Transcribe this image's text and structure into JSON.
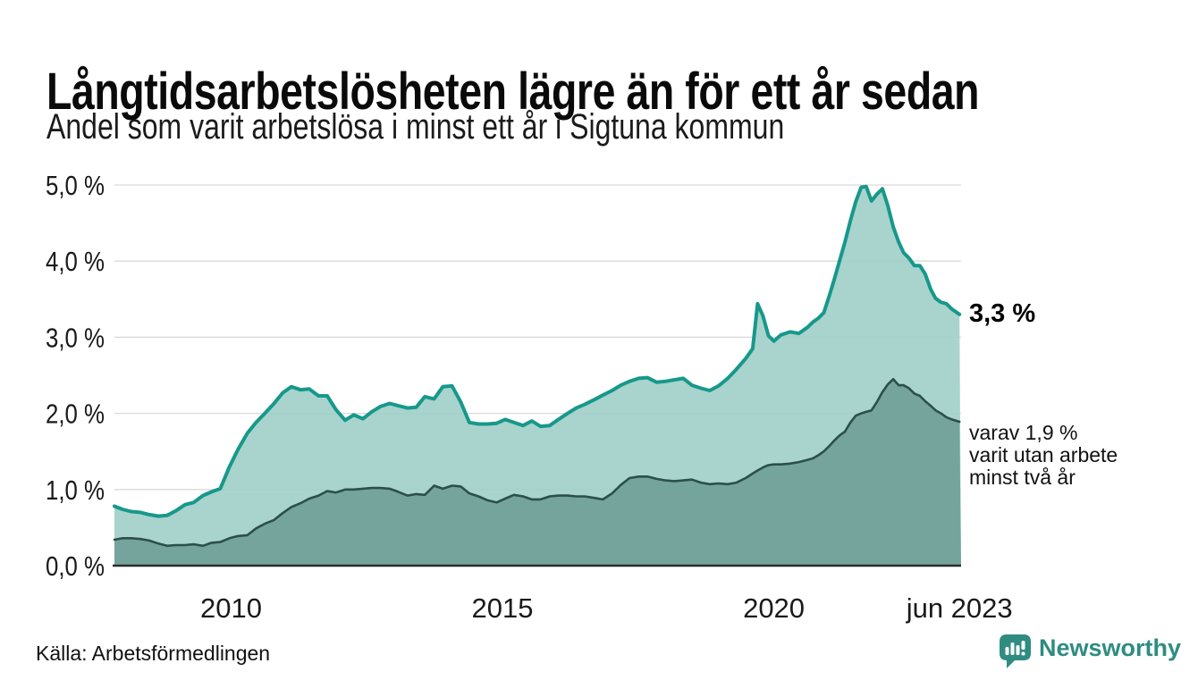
{
  "header": {
    "title": "Långtidsarbetslösheten lägre än för ett år sedan",
    "subtitle": "Andel som varit arbetslösa i minst ett år i Sigtuna kommun"
  },
  "chart_data": {
    "type": "area",
    "title": "Långtidsarbetslösheten lägre än för ett år sedan",
    "subtitle": "Andel som varit arbetslösa i minst ett år i Sigtuna kommun",
    "x_unit": "decimal_year",
    "xlim": [
      2007.85,
      2023.45
    ],
    "ylim": [
      0,
      5
    ],
    "grid": "horizontal",
    "legend_position": "none",
    "x": [
      2007.85,
      2008.0,
      2008.16,
      2008.33,
      2008.49,
      2008.66,
      2008.82,
      2008.98,
      2009.15,
      2009.31,
      2009.48,
      2009.64,
      2009.8,
      2009.97,
      2010.13,
      2010.3,
      2010.46,
      2010.62,
      2010.79,
      2010.95,
      2011.11,
      2011.28,
      2011.44,
      2011.61,
      2011.77,
      2011.93,
      2012.1,
      2012.26,
      2012.43,
      2012.59,
      2012.75,
      2012.92,
      2013.08,
      2013.25,
      2013.41,
      2013.57,
      2013.74,
      2013.9,
      2014.07,
      2014.23,
      2014.39,
      2014.56,
      2014.72,
      2014.89,
      2015.05,
      2015.21,
      2015.38,
      2015.54,
      2015.7,
      2015.87,
      2016.03,
      2016.2,
      2016.36,
      2016.52,
      2016.69,
      2016.85,
      2017.02,
      2017.18,
      2017.34,
      2017.51,
      2017.67,
      2017.84,
      2018.0,
      2018.16,
      2018.33,
      2018.49,
      2018.66,
      2018.82,
      2018.98,
      2019.15,
      2019.31,
      2019.48,
      2019.61,
      2019.7,
      2019.8,
      2019.9,
      2020.0,
      2020.13,
      2020.3,
      2020.46,
      2020.62,
      2020.72,
      2020.82,
      2020.92,
      2021.02,
      2021.11,
      2021.21,
      2021.31,
      2021.41,
      2021.51,
      2021.61,
      2021.7,
      2021.8,
      2021.9,
      2022.0,
      2022.1,
      2022.2,
      2022.3,
      2022.39,
      2022.49,
      2022.59,
      2022.69,
      2022.79,
      2022.89,
      2022.98,
      2023.08,
      2023.18,
      2023.28,
      2023.42
    ],
    "series": [
      {
        "name": "Arbetslösa minst ett år",
        "end_value": 3.3,
        "values": [
          0.78,
          0.74,
          0.71,
          0.7,
          0.67,
          0.65,
          0.66,
          0.72,
          0.8,
          0.83,
          0.92,
          0.97,
          1.01,
          1.3,
          1.53,
          1.74,
          1.88,
          2.0,
          2.13,
          2.27,
          2.35,
          2.31,
          2.32,
          2.23,
          2.23,
          2.05,
          1.91,
          1.98,
          1.93,
          2.02,
          2.09,
          2.13,
          2.1,
          2.07,
          2.08,
          2.22,
          2.19,
          2.35,
          2.36,
          2.15,
          1.88,
          1.86,
          1.86,
          1.87,
          1.92,
          1.88,
          1.84,
          1.9,
          1.83,
          1.84,
          1.92,
          2.0,
          2.07,
          2.12,
          2.18,
          2.24,
          2.3,
          2.37,
          2.42,
          2.46,
          2.47,
          2.41,
          2.42,
          2.44,
          2.46,
          2.37,
          2.33,
          2.3,
          2.36,
          2.46,
          2.58,
          2.72,
          2.85,
          3.44,
          3.28,
          3.02,
          2.95,
          3.03,
          3.07,
          3.05,
          3.13,
          3.2,
          3.25,
          3.32,
          3.54,
          3.75,
          4.0,
          4.25,
          4.53,
          4.78,
          4.97,
          4.98,
          4.79,
          4.88,
          4.95,
          4.73,
          4.45,
          4.25,
          4.11,
          4.04,
          3.94,
          3.94,
          3.83,
          3.63,
          3.51,
          3.46,
          3.44,
          3.37,
          3.3
        ]
      },
      {
        "name": "varav arbetslösa minst två år",
        "end_value": 1.9,
        "values": [
          0.34,
          0.36,
          0.36,
          0.35,
          0.33,
          0.29,
          0.26,
          0.27,
          0.27,
          0.28,
          0.26,
          0.3,
          0.31,
          0.36,
          0.39,
          0.4,
          0.49,
          0.55,
          0.6,
          0.69,
          0.77,
          0.82,
          0.88,
          0.92,
          0.98,
          0.96,
          1.0,
          1.0,
          1.01,
          1.02,
          1.02,
          1.01,
          0.97,
          0.92,
          0.94,
          0.93,
          1.05,
          1.01,
          1.05,
          1.04,
          0.95,
          0.91,
          0.86,
          0.83,
          0.88,
          0.93,
          0.91,
          0.87,
          0.87,
          0.91,
          0.92,
          0.92,
          0.91,
          0.91,
          0.89,
          0.87,
          0.95,
          1.06,
          1.15,
          1.17,
          1.17,
          1.14,
          1.12,
          1.11,
          1.12,
          1.13,
          1.09,
          1.07,
          1.08,
          1.07,
          1.09,
          1.15,
          1.21,
          1.25,
          1.29,
          1.32,
          1.33,
          1.33,
          1.34,
          1.36,
          1.39,
          1.41,
          1.45,
          1.5,
          1.57,
          1.64,
          1.71,
          1.76,
          1.88,
          1.97,
          2.0,
          2.02,
          2.04,
          2.15,
          2.28,
          2.38,
          2.45,
          2.37,
          2.37,
          2.33,
          2.26,
          2.23,
          2.16,
          2.1,
          2.04,
          2.0,
          1.95,
          1.92,
          1.89
        ]
      }
    ],
    "y_ticks": [
      {
        "value": 0,
        "label": "0,0 %"
      },
      {
        "value": 1,
        "label": "1,0 %"
      },
      {
        "value": 2,
        "label": "2,0 %"
      },
      {
        "value": 3,
        "label": "3,0 %"
      },
      {
        "value": 4,
        "label": "4,0 %"
      },
      {
        "value": 5,
        "label": "5,0 %"
      }
    ],
    "x_ticks": [
      {
        "value": 2010,
        "label": "2010"
      },
      {
        "value": 2015,
        "label": "2015"
      },
      {
        "value": 2020,
        "label": "2020"
      },
      {
        "value": 2023.42,
        "label": "jun 2023"
      }
    ],
    "annotations": [
      {
        "id": "total-end",
        "text": "3,3 %",
        "value": 3.3
      },
      {
        "id": "two-plus-end",
        "lines": [
          "varav 1,9 %",
          "varit utan arbete",
          "minst två år"
        ],
        "value": 1.9
      }
    ]
  },
  "footer": {
    "source": "Källa: Arbetsförmedlingen",
    "brand": "Newsworthy"
  },
  "colors": {
    "line_light": "#17988b",
    "fill_light": "#9fcfc8",
    "line_dark": "#2c4f49",
    "fill_dark": "#6f9e98",
    "grid": "#d9d9d9",
    "axis": "#2b2b2b",
    "brand_teal": "#2f8c81"
  }
}
